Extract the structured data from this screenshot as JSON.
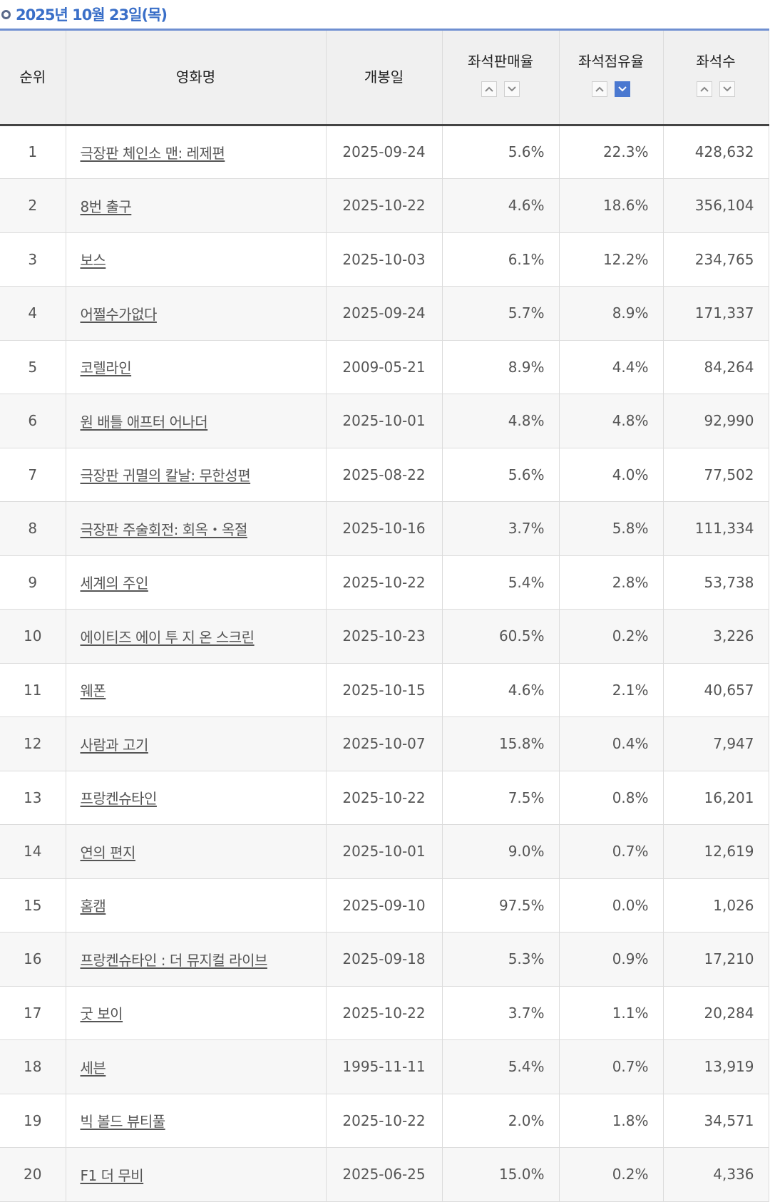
{
  "header": {
    "date": "2025년 10월 23일(목)"
  },
  "columns": {
    "rank": "순위",
    "title": "영화명",
    "release": "개봉일",
    "sales_rate": "좌석판매율",
    "occupancy_rate": "좌석점유율",
    "seats": "좌석수"
  },
  "sort": {
    "active_column": "occupancy_rate",
    "active_direction": "down",
    "active_color": "#4a78d0"
  },
  "accent_colors": {
    "date_text": "#3a6fc8",
    "header_rule": "#6f8fd1"
  },
  "rows": [
    {
      "rank": "1",
      "title": "극장판 체인소 맨: 레제편",
      "release": "2025-09-24",
      "sales_rate": "5.6%",
      "occupancy_rate": "22.3%",
      "seats": "428,632"
    },
    {
      "rank": "2",
      "title": "8번 출구",
      "release": "2025-10-22",
      "sales_rate": "4.6%",
      "occupancy_rate": "18.6%",
      "seats": "356,104"
    },
    {
      "rank": "3",
      "title": "보스",
      "release": "2025-10-03",
      "sales_rate": "6.1%",
      "occupancy_rate": "12.2%",
      "seats": "234,765"
    },
    {
      "rank": "4",
      "title": "어쩔수가없다",
      "release": "2025-09-24",
      "sales_rate": "5.7%",
      "occupancy_rate": "8.9%",
      "seats": "171,337"
    },
    {
      "rank": "5",
      "title": "코렐라인",
      "release": "2009-05-21",
      "sales_rate": "8.9%",
      "occupancy_rate": "4.4%",
      "seats": "84,264"
    },
    {
      "rank": "6",
      "title": "원 배틀 애프터 어나더",
      "release": "2025-10-01",
      "sales_rate": "4.8%",
      "occupancy_rate": "4.8%",
      "seats": "92,990"
    },
    {
      "rank": "7",
      "title": "극장판 귀멸의 칼날: 무한성편",
      "release": "2025-08-22",
      "sales_rate": "5.6%",
      "occupancy_rate": "4.0%",
      "seats": "77,502"
    },
    {
      "rank": "8",
      "title": "극장판 주술회전: 회옥・옥절",
      "release": "2025-10-16",
      "sales_rate": "3.7%",
      "occupancy_rate": "5.8%",
      "seats": "111,334"
    },
    {
      "rank": "9",
      "title": "세계의 주인",
      "release": "2025-10-22",
      "sales_rate": "5.4%",
      "occupancy_rate": "2.8%",
      "seats": "53,738"
    },
    {
      "rank": "10",
      "title": "에이티즈 에이 투 지 온 스크린",
      "release": "2025-10-23",
      "sales_rate": "60.5%",
      "occupancy_rate": "0.2%",
      "seats": "3,226"
    },
    {
      "rank": "11",
      "title": "웨폰",
      "release": "2025-10-15",
      "sales_rate": "4.6%",
      "occupancy_rate": "2.1%",
      "seats": "40,657"
    },
    {
      "rank": "12",
      "title": "사람과 고기",
      "release": "2025-10-07",
      "sales_rate": "15.8%",
      "occupancy_rate": "0.4%",
      "seats": "7,947"
    },
    {
      "rank": "13",
      "title": "프랑켄슈타인",
      "release": "2025-10-22",
      "sales_rate": "7.5%",
      "occupancy_rate": "0.8%",
      "seats": "16,201"
    },
    {
      "rank": "14",
      "title": "연의 편지",
      "release": "2025-10-01",
      "sales_rate": "9.0%",
      "occupancy_rate": "0.7%",
      "seats": "12,619"
    },
    {
      "rank": "15",
      "title": "홈캠",
      "release": "2025-09-10",
      "sales_rate": "97.5%",
      "occupancy_rate": "0.0%",
      "seats": "1,026"
    },
    {
      "rank": "16",
      "title": "프랑켄슈타인 : 더 뮤지컬 라이브",
      "release": "2025-09-18",
      "sales_rate": "5.3%",
      "occupancy_rate": "0.9%",
      "seats": "17,210"
    },
    {
      "rank": "17",
      "title": "굿 보이",
      "release": "2025-10-22",
      "sales_rate": "3.7%",
      "occupancy_rate": "1.1%",
      "seats": "20,284"
    },
    {
      "rank": "18",
      "title": "세븐",
      "release": "1995-11-11",
      "sales_rate": "5.4%",
      "occupancy_rate": "0.7%",
      "seats": "13,919"
    },
    {
      "rank": "19",
      "title": "빅 볼드 뷰티풀",
      "release": "2025-10-22",
      "sales_rate": "2.0%",
      "occupancy_rate": "1.8%",
      "seats": "34,571"
    },
    {
      "rank": "20",
      "title": "F1 더 무비",
      "release": "2025-06-25",
      "sales_rate": "15.0%",
      "occupancy_rate": "0.2%",
      "seats": "4,336"
    }
  ]
}
